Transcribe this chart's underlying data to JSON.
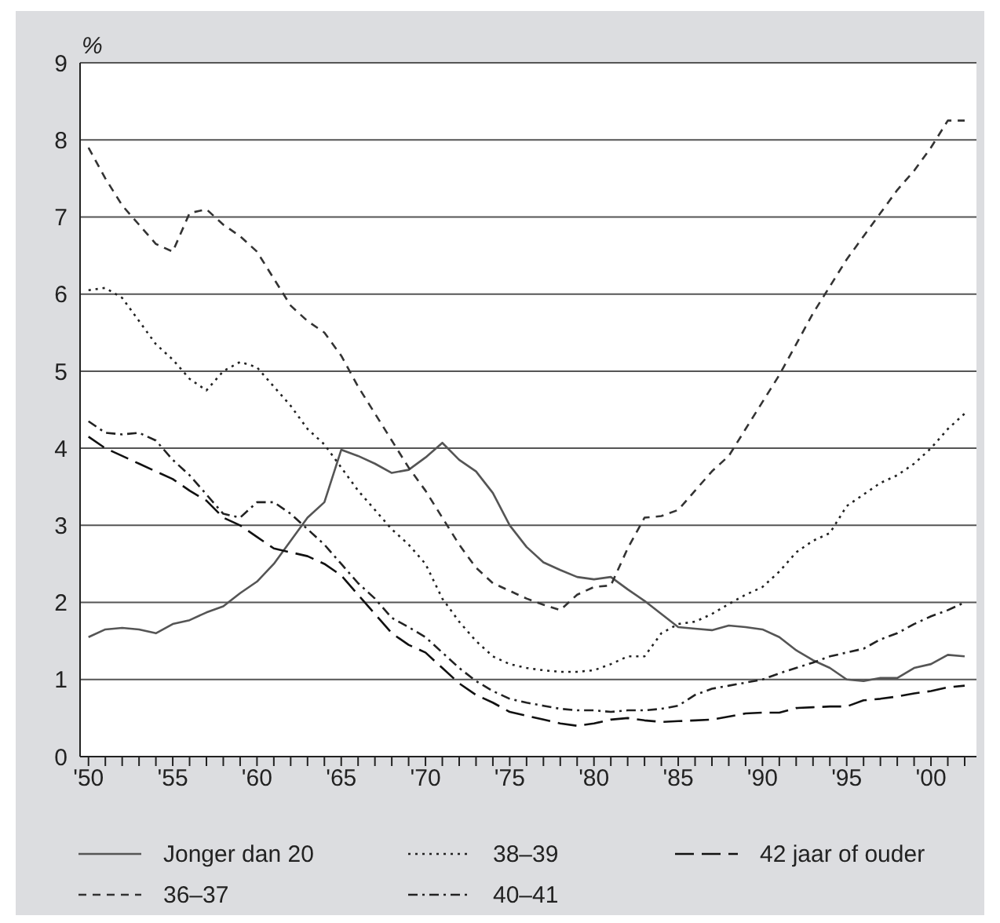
{
  "chart_data": {
    "type": "line",
    "ylabel": "%",
    "x": [
      1950,
      1951,
      1952,
      1953,
      1954,
      1955,
      1956,
      1957,
      1958,
      1959,
      1960,
      1961,
      1962,
      1963,
      1964,
      1965,
      1966,
      1967,
      1968,
      1969,
      1970,
      1971,
      1972,
      1973,
      1974,
      1975,
      1976,
      1977,
      1978,
      1979,
      1980,
      1981,
      1982,
      1983,
      1984,
      1985,
      1986,
      1987,
      1988,
      1989,
      1990,
      1991,
      1992,
      1993,
      1994,
      1995,
      1996,
      1997,
      1998,
      1999,
      2000,
      2001,
      2002
    ],
    "series": [
      {
        "name": "Jonger dan 20",
        "color": "#555555",
        "line_style": "solid",
        "values": [
          1.55,
          1.65,
          1.67,
          1.65,
          1.6,
          1.72,
          1.77,
          1.87,
          1.95,
          2.12,
          2.27,
          2.5,
          2.8,
          3.1,
          3.3,
          3.98,
          3.9,
          3.8,
          3.68,
          3.72,
          3.88,
          4.07,
          3.85,
          3.7,
          3.42,
          3.0,
          2.72,
          2.52,
          2.42,
          2.33,
          2.3,
          2.33,
          2.17,
          2.02,
          1.85,
          1.68,
          1.66,
          1.64,
          1.7,
          1.68,
          1.65,
          1.55,
          1.38,
          1.25,
          1.15,
          1.0,
          0.98,
          1.02,
          1.02,
          1.15,
          1.2,
          1.32,
          1.3
        ]
      },
      {
        "name": "36–37",
        "color": "#333333",
        "line_style": "dashed",
        "values": [
          7.9,
          7.5,
          7.15,
          6.9,
          6.65,
          6.55,
          7.05,
          7.1,
          6.9,
          6.75,
          6.55,
          6.2,
          5.85,
          5.65,
          5.5,
          5.2,
          4.8,
          4.45,
          4.1,
          3.75,
          3.45,
          3.1,
          2.75,
          2.45,
          2.25,
          2.15,
          2.05,
          1.97,
          1.9,
          2.1,
          2.2,
          2.22,
          2.7,
          3.1,
          3.12,
          3.2,
          3.45,
          3.7,
          3.9,
          4.25,
          4.6,
          4.95,
          5.35,
          5.75,
          6.1,
          6.45,
          6.75,
          7.05,
          7.35,
          7.6,
          7.9,
          8.25,
          8.25
        ]
      },
      {
        "name": "38–39",
        "color": "#222222",
        "line_style": "dotted",
        "values": [
          6.05,
          6.08,
          5.95,
          5.65,
          5.35,
          5.15,
          4.9,
          4.75,
          5.0,
          5.12,
          5.05,
          4.8,
          4.55,
          4.25,
          4.05,
          3.75,
          3.45,
          3.2,
          2.95,
          2.75,
          2.5,
          2.05,
          1.75,
          1.5,
          1.3,
          1.2,
          1.15,
          1.12,
          1.1,
          1.1,
          1.12,
          1.2,
          1.3,
          1.3,
          1.6,
          1.72,
          1.75,
          1.85,
          1.98,
          2.1,
          2.2,
          2.4,
          2.65,
          2.8,
          2.9,
          3.25,
          3.4,
          3.55,
          3.65,
          3.8,
          4.0,
          4.25,
          4.45
        ]
      },
      {
        "name": "40–41",
        "color": "#222222",
        "line_style": "dashdot",
        "values": [
          4.35,
          4.2,
          4.18,
          4.2,
          4.1,
          3.85,
          3.65,
          3.4,
          3.15,
          3.1,
          3.3,
          3.3,
          3.15,
          2.95,
          2.75,
          2.5,
          2.25,
          2.05,
          1.8,
          1.68,
          1.55,
          1.35,
          1.15,
          0.98,
          0.85,
          0.75,
          0.7,
          0.66,
          0.62,
          0.6,
          0.6,
          0.58,
          0.6,
          0.6,
          0.62,
          0.66,
          0.8,
          0.88,
          0.92,
          0.96,
          1.0,
          1.08,
          1.15,
          1.22,
          1.3,
          1.35,
          1.4,
          1.52,
          1.6,
          1.72,
          1.82,
          1.9,
          2.0
        ]
      },
      {
        "name": "42 jaar of ouder",
        "color": "#111111",
        "line_style": "longdash",
        "values": [
          4.15,
          4.0,
          3.9,
          3.8,
          3.7,
          3.6,
          3.45,
          3.32,
          3.1,
          3.0,
          2.85,
          2.7,
          2.65,
          2.6,
          2.5,
          2.35,
          2.1,
          1.85,
          1.6,
          1.45,
          1.35,
          1.15,
          0.95,
          0.8,
          0.7,
          0.58,
          0.53,
          0.48,
          0.43,
          0.4,
          0.43,
          0.48,
          0.5,
          0.47,
          0.45,
          0.46,
          0.47,
          0.48,
          0.52,
          0.56,
          0.57,
          0.57,
          0.63,
          0.64,
          0.65,
          0.65,
          0.73,
          0.75,
          0.78,
          0.82,
          0.85,
          0.9,
          0.92
        ]
      }
    ],
    "xlim": [
      1949.5,
      2002.7
    ],
    "xticks": [
      {
        "value": 1950,
        "label": "'50"
      },
      {
        "value": 1951,
        "label": null
      },
      {
        "value": 1952,
        "label": null
      },
      {
        "value": 1953,
        "label": null
      },
      {
        "value": 1954,
        "label": null
      },
      {
        "value": 1955,
        "label": "'55"
      },
      {
        "value": 1956,
        "label": null
      },
      {
        "value": 1957,
        "label": null
      },
      {
        "value": 1958,
        "label": null
      },
      {
        "value": 1959,
        "label": null
      },
      {
        "value": 1960,
        "label": "'60"
      },
      {
        "value": 1961,
        "label": null
      },
      {
        "value": 1962,
        "label": null
      },
      {
        "value": 1963,
        "label": null
      },
      {
        "value": 1964,
        "label": null
      },
      {
        "value": 1965,
        "label": "'65"
      },
      {
        "value": 1966,
        "label": null
      },
      {
        "value": 1967,
        "label": null
      },
      {
        "value": 1968,
        "label": null
      },
      {
        "value": 1969,
        "label": null
      },
      {
        "value": 1970,
        "label": "'70"
      },
      {
        "value": 1971,
        "label": null
      },
      {
        "value": 1972,
        "label": null
      },
      {
        "value": 1973,
        "label": null
      },
      {
        "value": 1974,
        "label": null
      },
      {
        "value": 1975,
        "label": "'75"
      },
      {
        "value": 1976,
        "label": null
      },
      {
        "value": 1977,
        "label": null
      },
      {
        "value": 1978,
        "label": null
      },
      {
        "value": 1979,
        "label": null
      },
      {
        "value": 1980,
        "label": "'80"
      },
      {
        "value": 1981,
        "label": null
      },
      {
        "value": 1982,
        "label": null
      },
      {
        "value": 1983,
        "label": null
      },
      {
        "value": 1984,
        "label": null
      },
      {
        "value": 1985,
        "label": "'85"
      },
      {
        "value": 1986,
        "label": null
      },
      {
        "value": 1987,
        "label": null
      },
      {
        "value": 1988,
        "label": null
      },
      {
        "value": 1989,
        "label": null
      },
      {
        "value": 1990,
        "label": "'90"
      },
      {
        "value": 1991,
        "label": null
      },
      {
        "value": 1992,
        "label": null
      },
      {
        "value": 1993,
        "label": null
      },
      {
        "value": 1994,
        "label": null
      },
      {
        "value": 1995,
        "label": "'95"
      },
      {
        "value": 1996,
        "label": null
      },
      {
        "value": 1997,
        "label": null
      },
      {
        "value": 1998,
        "label": null
      },
      {
        "value": 1999,
        "label": null
      },
      {
        "value": 2000,
        "label": "'00"
      },
      {
        "value": 2001,
        "label": null
      },
      {
        "value": 2002,
        "label": null
      }
    ],
    "ylim": [
      0,
      9
    ],
    "yticks": [
      0,
      1,
      2,
      3,
      4,
      5,
      6,
      7,
      8,
      9
    ],
    "grid": "y",
    "legend": "bottom",
    "marker": "none"
  }
}
